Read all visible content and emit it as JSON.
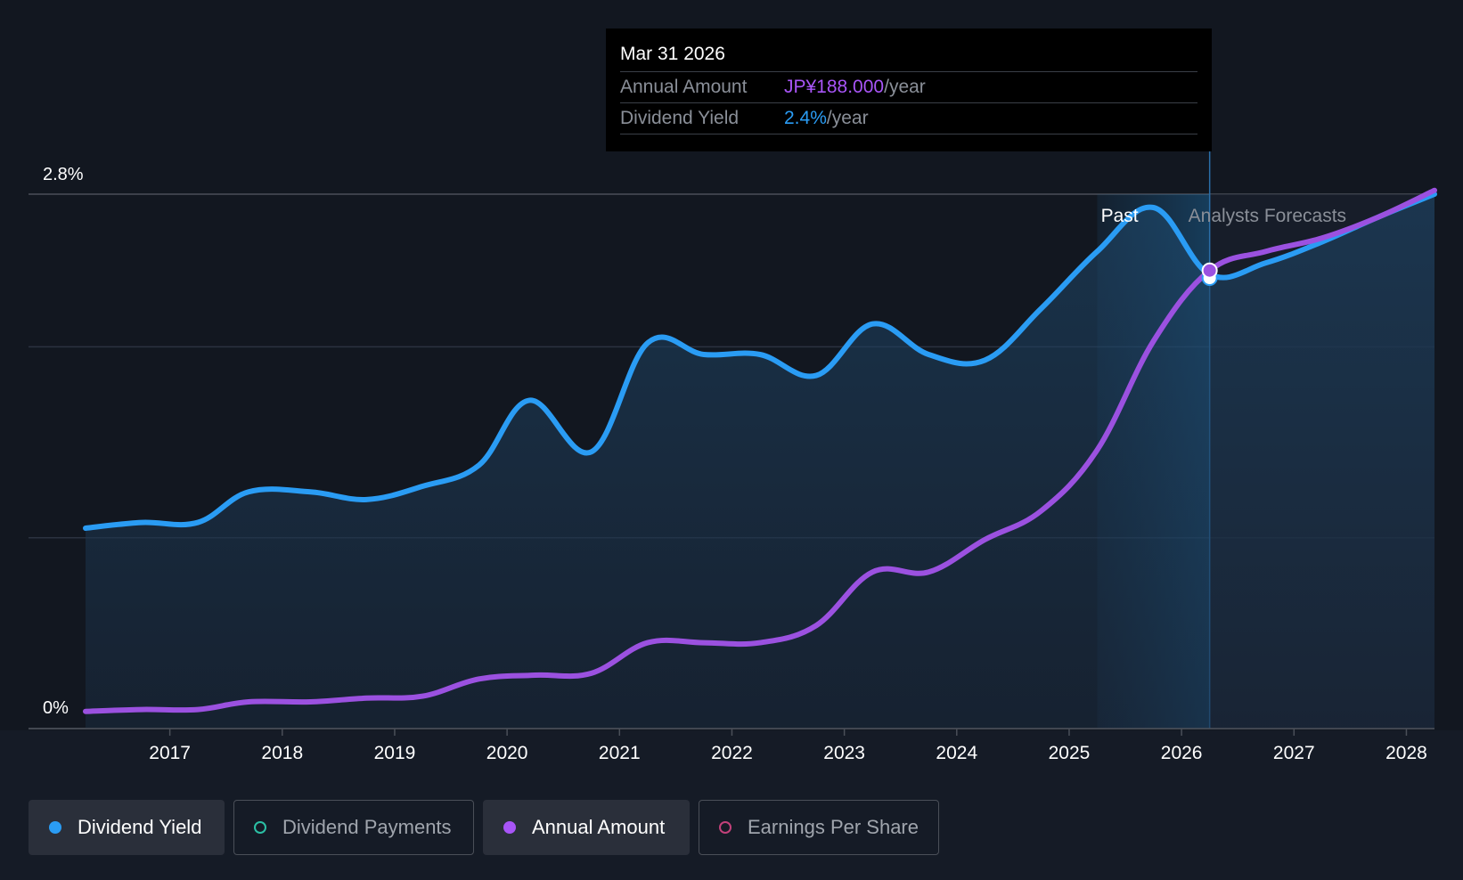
{
  "chart_data": {
    "type": "line",
    "y_tick_labels": [
      "2.8%",
      "0%"
    ],
    "ylim": [
      0,
      2.8
    ],
    "xlim": [
      2016.25,
      2028.25
    ],
    "x_tick_labels": [
      "2017",
      "2018",
      "2019",
      "2020",
      "2021",
      "2022",
      "2023",
      "2024",
      "2025",
      "2026",
      "2027",
      "2028"
    ],
    "x_ticks": [
      2017,
      2018,
      2019,
      2020,
      2021,
      2022,
      2023,
      2024,
      2025,
      2026,
      2027,
      2028
    ],
    "gridlines": [
      0,
      1.0,
      2.0,
      2.8
    ],
    "past_label": "Past",
    "forecast_label": "Analysts Forecasts",
    "forecast_start": 2026.25,
    "past_band_start": 2025.25,
    "series": [
      {
        "name": "Dividend Yield",
        "color": "#2a9cf4",
        "area": true,
        "points": [
          [
            2016.25,
            1.05
          ],
          [
            2016.75,
            1.08
          ],
          [
            2017.25,
            1.08
          ],
          [
            2017.7,
            1.24
          ],
          [
            2018.25,
            1.24
          ],
          [
            2018.75,
            1.2
          ],
          [
            2019.25,
            1.27
          ],
          [
            2019.75,
            1.38
          ],
          [
            2020.2,
            1.72
          ],
          [
            2020.75,
            1.45
          ],
          [
            2021.25,
            2.02
          ],
          [
            2021.75,
            1.96
          ],
          [
            2022.25,
            1.96
          ],
          [
            2022.75,
            1.85
          ],
          [
            2023.25,
            2.12
          ],
          [
            2023.75,
            1.96
          ],
          [
            2024.25,
            1.93
          ],
          [
            2024.75,
            2.2
          ],
          [
            2025.25,
            2.5
          ],
          [
            2025.75,
            2.73
          ],
          [
            2026.25,
            2.38
          ],
          [
            2026.75,
            2.44
          ],
          [
            2027.25,
            2.55
          ],
          [
            2027.75,
            2.68
          ],
          [
            2028.25,
            2.8
          ]
        ]
      },
      {
        "name": "Annual Amount",
        "color": "#9b51e0",
        "area": false,
        "points": [
          [
            2016.25,
            0.09
          ],
          [
            2016.75,
            0.1
          ],
          [
            2017.25,
            0.1
          ],
          [
            2017.7,
            0.14
          ],
          [
            2018.25,
            0.14
          ],
          [
            2018.75,
            0.16
          ],
          [
            2019.25,
            0.17
          ],
          [
            2019.75,
            0.26
          ],
          [
            2020.25,
            0.28
          ],
          [
            2020.75,
            0.29
          ],
          [
            2021.25,
            0.45
          ],
          [
            2021.75,
            0.45
          ],
          [
            2022.25,
            0.45
          ],
          [
            2022.75,
            0.54
          ],
          [
            2023.25,
            0.82
          ],
          [
            2023.75,
            0.82
          ],
          [
            2024.25,
            0.99
          ],
          [
            2024.75,
            1.14
          ],
          [
            2025.25,
            1.46
          ],
          [
            2025.75,
            2.03
          ],
          [
            2026.25,
            2.4
          ],
          [
            2026.75,
            2.5
          ],
          [
            2027.25,
            2.57
          ],
          [
            2027.75,
            2.68
          ],
          [
            2028.25,
            2.82
          ]
        ]
      }
    ],
    "highlight_x": 2026.25
  },
  "tooltip": {
    "date": "Mar 31 2026",
    "annual_label": "Annual Amount",
    "annual_value": "JP¥188.000",
    "annual_unit": "/year",
    "yield_label": "Dividend Yield",
    "yield_value": "2.4%",
    "yield_unit": "/year"
  },
  "legend": [
    {
      "label": "Dividend Yield",
      "color": "#2a9cf4",
      "active": true,
      "filled": true
    },
    {
      "label": "Dividend Payments",
      "color": "#2bbfa4",
      "active": false,
      "filled": false
    },
    {
      "label": "Annual Amount",
      "color": "#a855f7",
      "active": true,
      "filled": true
    },
    {
      "label": "Earnings Per Share",
      "color": "#c2417a",
      "active": false,
      "filled": false
    }
  ]
}
